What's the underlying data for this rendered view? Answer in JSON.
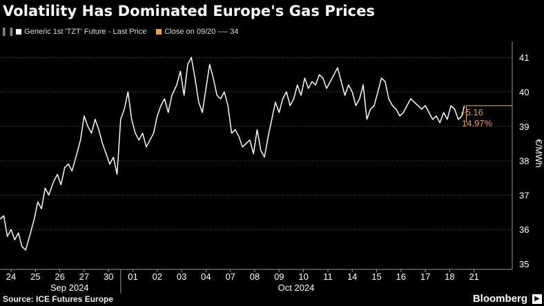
{
  "title": "Volatility Has Dominated Europe's Gas Prices",
  "legend": {
    "series_label": "Generic 1st 'TZT' Future - Last Price",
    "series_color": "#ffffff",
    "ref_label": "Close on 09/20 ---- 34",
    "ref_color": "#f0a03c"
  },
  "footer": {
    "source": "Source: ICE Futures Europe",
    "brand": "Bloomberg",
    "brand_icon": "bloomberg-terminal-icon"
  },
  "chart_data": {
    "type": "line",
    "title": "Volatility Has Dominated Europe's Gas Prices",
    "ylabel": "€/MWh",
    "ylim": [
      35,
      41.5
    ],
    "yticks": [
      35,
      36,
      37,
      38,
      39,
      40,
      41
    ],
    "grid": true,
    "x_tick_labels": [
      "24",
      "25",
      "26",
      "27",
      "30",
      "01",
      "02",
      "03",
      "04",
      "07",
      "08",
      "09",
      "10",
      "11",
      "14",
      "15",
      "16",
      "17",
      "18",
      "21"
    ],
    "month_labels": [
      {
        "label": "Sep 2024",
        "position_day_index": 2.4
      },
      {
        "label": "Oct 2024",
        "position_day_index": 11.7
      }
    ],
    "annotation": {
      "change": "+5.16",
      "pct": "14.97%",
      "color": "#f0a03c"
    },
    "series": [
      {
        "name": "Generic 1st 'TZT' Future - Last Price",
        "color": "#ffffff",
        "x": [
          -0.45,
          -0.3,
          -0.15,
          0,
          0.15,
          0.3,
          0.45,
          0.6,
          0.8,
          0.95,
          1.1,
          1.25,
          1.4,
          1.55,
          1.75,
          1.9,
          2.05,
          2.2,
          2.35,
          2.5,
          2.7,
          2.85,
          3.0,
          3.15,
          3.3,
          3.45,
          3.6,
          3.75,
          3.9,
          4.05,
          4.2,
          4.35,
          4.5,
          4.65,
          4.8,
          4.95,
          5.1,
          5.25,
          5.4,
          5.55,
          5.7,
          5.85,
          6.0,
          6.15,
          6.3,
          6.45,
          6.6,
          6.8,
          6.95,
          7.1,
          7.25,
          7.4,
          7.55,
          7.7,
          7.85,
          8.0,
          8.15,
          8.3,
          8.45,
          8.6,
          8.75,
          8.9,
          9.05,
          9.2,
          9.35,
          9.5,
          9.65,
          9.8,
          9.95,
          10.1,
          10.25,
          10.4,
          10.55,
          10.7,
          10.85,
          11.0,
          11.15,
          11.3,
          11.45,
          11.6,
          11.75,
          11.9,
          12.05,
          12.2,
          12.35,
          12.5,
          12.65,
          12.8,
          12.95,
          13.1,
          13.25,
          13.4,
          13.55,
          13.7,
          13.85,
          14.0,
          14.15,
          14.3,
          14.45,
          14.6,
          14.75,
          14.9,
          15.05,
          15.2,
          15.35,
          15.5,
          15.65,
          15.8,
          15.95,
          16.1,
          16.25,
          16.4,
          16.55,
          16.7,
          16.85,
          17.0,
          17.15,
          17.3,
          17.45,
          17.6,
          17.75,
          17.9,
          18.05,
          18.2,
          18.35,
          18.5,
          18.6
        ],
        "values": [
          36.3,
          36.4,
          35.8,
          36.0,
          35.7,
          35.9,
          35.5,
          35.4,
          35.9,
          36.3,
          36.8,
          36.6,
          37.2,
          37.0,
          37.4,
          37.6,
          37.3,
          37.8,
          37.9,
          37.7,
          38.2,
          38.6,
          39.3,
          39.0,
          38.8,
          39.2,
          38.9,
          38.5,
          38.2,
          37.9,
          38.1,
          37.6,
          39.2,
          39.5,
          40.0,
          39.2,
          38.8,
          38.6,
          38.8,
          38.4,
          38.6,
          38.8,
          39.3,
          39.6,
          39.8,
          39.4,
          39.9,
          40.2,
          40.6,
          39.9,
          40.8,
          41.0,
          40.4,
          39.7,
          39.4,
          40.1,
          40.8,
          40.4,
          39.9,
          39.8,
          40.0,
          39.6,
          38.8,
          38.9,
          38.7,
          38.4,
          38.5,
          38.6,
          38.2,
          38.9,
          38.3,
          38.1,
          38.7,
          39.2,
          39.7,
          39.4,
          39.8,
          40.0,
          39.6,
          39.8,
          40.2,
          39.9,
          40.4,
          40.1,
          40.3,
          40.2,
          40.5,
          40.4,
          40.1,
          40.3,
          40.5,
          40.7,
          40.3,
          39.9,
          40.2,
          40.0,
          39.6,
          39.8,
          40.2,
          39.2,
          39.5,
          39.6,
          40.0,
          40.4,
          40.3,
          39.8,
          39.6,
          39.5,
          39.3,
          39.4,
          39.6,
          39.8,
          39.7,
          39.6,
          39.5,
          39.6,
          39.4,
          39.2,
          39.3,
          39.1,
          39.4,
          39.2,
          39.6,
          39.5,
          39.2,
          39.3,
          39.6
        ]
      }
    ]
  }
}
